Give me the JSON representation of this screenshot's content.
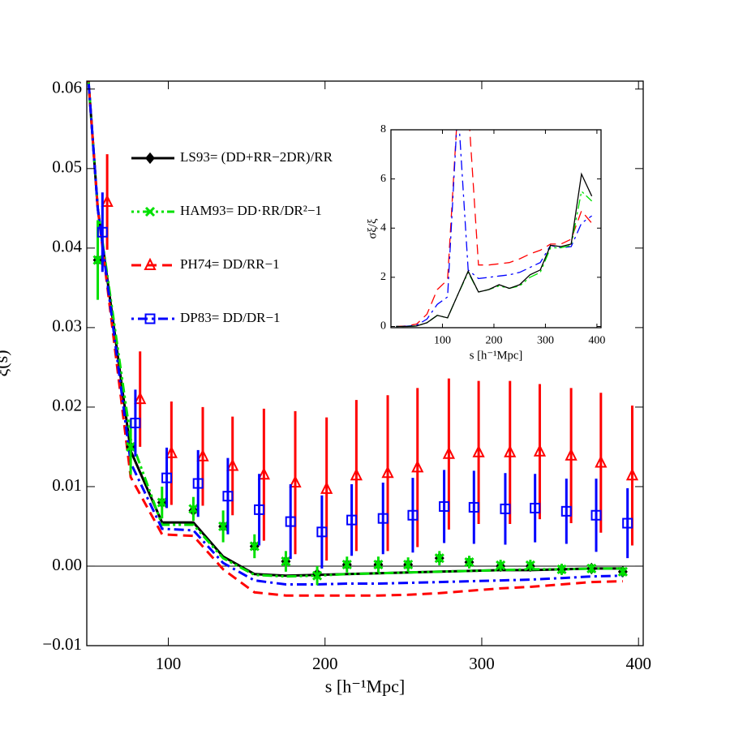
{
  "chart_data": [
    {
      "type": "line",
      "xlabel": "s [h⁻¹Mpc]",
      "ylabel": "ξ(s)",
      "xlim": [
        48,
        403
      ],
      "ylim": [
        -0.01,
        0.061
      ],
      "xticks": [
        100,
        200,
        300,
        400
      ],
      "yticks": [
        {
          "value": -0.01,
          "label": "−0.01"
        },
        {
          "value": 0,
          "label": "0.00"
        },
        {
          "value": 0.01,
          "label": "0.01"
        },
        {
          "value": 0.02,
          "label": "0.02"
        },
        {
          "value": 0.03,
          "label": "0.03"
        },
        {
          "value": 0.04,
          "label": "0.04"
        },
        {
          "value": 0.05,
          "label": "0.05"
        },
        {
          "value": 0.06,
          "label": "0.06"
        }
      ],
      "zero_line": true,
      "series": [
        {
          "name": "LS93= (DD+RR−2DR)/RR",
          "color": "#000000",
          "linestyle": "solid",
          "marker": "diamond",
          "x": [
            55,
            76,
            96,
            116,
            135,
            155,
            175,
            195,
            214,
            234,
            253,
            273,
            292,
            312,
            331,
            351,
            370,
            390
          ],
          "values": [
            0.0385,
            0.015,
            0.008,
            0.007,
            0.005,
            0.0025,
            0.0006,
            -0.001,
            0.0002,
            0.0002,
            0.0002,
            0.001,
            0.0005,
            0,
            0,
            -0.0004,
            -0.0003,
            -0.0007
          ],
          "curve": {
            "x": [
              48,
              55,
              76,
              96,
              116,
              135,
              155,
              175,
              195,
              214,
              234,
              253,
              273,
              292,
              312,
              331,
              351,
              370,
              390
            ],
            "values": [
              0.064,
              0.045,
              0.0145,
              0.0055,
              0.0055,
              0.0012,
              -0.001,
              -0.0012,
              -0.0011,
              -0.001,
              -0.0009,
              -0.0008,
              -0.0007,
              -0.0006,
              -0.0005,
              -0.0005,
              -0.0004,
              -0.0003,
              -0.0003
            ]
          }
        },
        {
          "name": "HAM93= DD·RR/DR²−1",
          "color": "#00e000",
          "linestyle": "dash-dot-dot",
          "marker": "cross",
          "x": [
            55,
            76,
            96,
            116,
            135,
            155,
            175,
            195,
            214,
            234,
            253,
            273,
            292,
            312,
            331,
            351,
            370,
            390
          ],
          "values": [
            0.0385,
            0.015,
            0.008,
            0.0072,
            0.005,
            0.0025,
            0.0006,
            -0.0012,
            0.0002,
            0.0002,
            0.0002,
            0.001,
            0.0005,
            0.0001,
            0.0001,
            -0.0004,
            -0.0003,
            -0.0007
          ],
          "errors": [
            0.005,
            0.0035,
            0.002,
            0.0015,
            0.002,
            0.0015,
            0.0013,
            0.0012,
            0.001,
            0.001,
            0.0009,
            0.0009,
            0.0008,
            0.0007,
            0.0007,
            0.0007,
            0.0006,
            0.0006
          ],
          "curve": {
            "x": [
              48,
              55,
              76,
              96,
              116,
              135,
              155,
              175,
              195,
              214,
              234,
              253,
              273,
              292,
              312,
              331,
              351,
              370,
              390
            ],
            "values": [
              0.064,
              0.045,
              0.016,
              0.0052,
              0.0052,
              0.001,
              -0.0011,
              -0.0013,
              -0.0012,
              -0.001,
              -0.0009,
              -0.0008,
              -0.0007,
              -0.0006,
              -0.0005,
              -0.0004,
              -0.0004,
              -0.0003,
              -0.0003
            ]
          }
        },
        {
          "name": "PH74= DD/RR−1",
          "color": "#ff0000",
          "linestyle": "dashed",
          "marker": "triangle",
          "x": [
            61,
            82,
            102,
            122,
            141,
            161,
            181,
            201,
            220,
            240,
            259,
            279,
            298,
            318,
            337,
            357,
            376,
            396
          ],
          "values": [
            0.0458,
            0.021,
            0.0142,
            0.0138,
            0.0126,
            0.0115,
            0.0105,
            0.0097,
            0.0114,
            0.0117,
            0.0124,
            0.0141,
            0.0143,
            0.0143,
            0.0144,
            0.0139,
            0.013,
            0.0114
          ],
          "errors": [
            0.006,
            0.006,
            0.0065,
            0.0062,
            0.0062,
            0.0083,
            0.009,
            0.009,
            0.0095,
            0.0098,
            0.01,
            0.0095,
            0.009,
            0.009,
            0.0085,
            0.0085,
            0.0088,
            0.0088
          ],
          "curve": {
            "x": [
              48,
              55,
              76,
              96,
              116,
              135,
              155,
              175,
              195,
              214,
              234,
              253,
              273,
              292,
              312,
              331,
              351,
              370,
              390
            ],
            "values": [
              0.064,
              0.045,
              0.0112,
              0.004,
              0.0038,
              -0.0004,
              -0.0033,
              -0.0037,
              -0.0037,
              -0.0037,
              -0.0037,
              -0.0036,
              -0.0034,
              -0.0031,
              -0.0028,
              -0.0026,
              -0.0023,
              -0.002,
              -0.0019
            ]
          }
        },
        {
          "name": "DP83= DD/DR−1",
          "color": "#0000ff",
          "linestyle": "dash-dot",
          "marker": "square",
          "x": [
            58,
            79,
            99,
            119,
            138,
            158,
            178,
            198,
            217,
            237,
            256,
            276,
            295,
            315,
            334,
            354,
            373,
            393
          ],
          "values": [
            0.042,
            0.018,
            0.0111,
            0.0104,
            0.0088,
            0.0071,
            0.0056,
            0.0043,
            0.0058,
            0.006,
            0.0064,
            0.0075,
            0.0074,
            0.0072,
            0.0073,
            0.0069,
            0.0064,
            0.0054
          ],
          "errors": [
            0.005,
            0.0042,
            0.0038,
            0.0042,
            0.0048,
            0.0045,
            0.0047,
            0.0046,
            0.0045,
            0.0045,
            0.0047,
            0.0046,
            0.0046,
            0.0045,
            0.0043,
            0.0041,
            0.0046,
            0.0044
          ],
          "curve": {
            "x": [
              48,
              55,
              76,
              96,
              116,
              135,
              155,
              175,
              195,
              214,
              234,
              253,
              273,
              292,
              312,
              331,
              351,
              370,
              390
            ],
            "values": [
              0.064,
              0.045,
              0.013,
              0.0047,
              0.0045,
              0.0004,
              -0.0018,
              -0.0023,
              -0.0023,
              -0.0022,
              -0.0022,
              -0.0021,
              -0.002,
              -0.0019,
              -0.0018,
              -0.0017,
              -0.0015,
              -0.0013,
              -0.0012
            ]
          }
        }
      ]
    },
    {
      "type": "line",
      "xlabel": "s [h⁻¹Mpc]",
      "ylabel": "σξ/ξ",
      "xlim": [
        0,
        408
      ],
      "ylim": [
        -0.05,
        8
      ],
      "xticks": [
        100,
        200,
        300,
        400
      ],
      "yticks": [
        0,
        2,
        4,
        6,
        8
      ],
      "series": [
        {
          "color": "#ff0000",
          "linestyle": "dashed",
          "x": [
            10,
            30,
            50,
            70,
            90,
            110,
            130,
            150,
            170,
            190,
            210,
            230,
            250,
            270,
            290,
            310,
            330,
            350,
            370,
            390
          ],
          "values": [
            0,
            0.02,
            0.1,
            0.5,
            1.5,
            1.9,
            9,
            9,
            2.5,
            2.5,
            2.55,
            2.6,
            2.75,
            2.95,
            3.1,
            3.35,
            3.35,
            3.55,
            4.7,
            4.2
          ]
        },
        {
          "color": "#0000ff",
          "linestyle": "dash-dot",
          "x": [
            10,
            30,
            50,
            70,
            90,
            110,
            130,
            150,
            170,
            190,
            210,
            230,
            250,
            270,
            290,
            310,
            330,
            350,
            370,
            390
          ],
          "values": [
            0,
            0.01,
            0.05,
            0.3,
            0.9,
            1.2,
            9,
            2.3,
            1.95,
            2,
            2.05,
            2.1,
            2.2,
            2.4,
            2.6,
            3.3,
            3.2,
            3.25,
            4.2,
            4.5
          ]
        },
        {
          "color": "#00e000",
          "linestyle": "dash-dot-dot",
          "x": [
            10,
            30,
            50,
            70,
            90,
            110,
            130,
            150,
            170,
            190,
            210,
            230,
            250,
            270,
            290,
            310,
            330,
            350,
            370,
            390
          ],
          "values": [
            0,
            0,
            0.02,
            0.15,
            0.45,
            0.35,
            1.3,
            2.2,
            1.4,
            1.5,
            1.65,
            1.55,
            1.65,
            2,
            2.2,
            3.2,
            3.2,
            3.3,
            5.5,
            5.1
          ]
        },
        {
          "color": "#000000",
          "linestyle": "solid",
          "x": [
            10,
            30,
            50,
            70,
            90,
            110,
            130,
            150,
            170,
            190,
            210,
            230,
            250,
            270,
            290,
            310,
            330,
            350,
            370,
            390
          ],
          "values": [
            0,
            0,
            0.02,
            0.15,
            0.45,
            0.35,
            1.3,
            2.25,
            1.4,
            1.5,
            1.7,
            1.55,
            1.7,
            2.1,
            2.3,
            3.3,
            3.25,
            3.35,
            6.2,
            5.3
          ]
        }
      ]
    }
  ]
}
